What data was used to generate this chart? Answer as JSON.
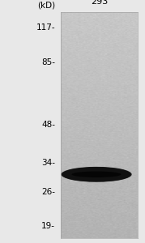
{
  "lane_label": "293",
  "lane_label_fontsize": 8,
  "kd_label": "(kD)",
  "kd_label_fontsize": 7.5,
  "marker_values": [
    117,
    85,
    48,
    34,
    26,
    19
  ],
  "marker_labels": [
    "117-",
    "85-",
    "48-",
    "34-",
    "26-",
    "19-"
  ],
  "marker_fontsize": 7.5,
  "band_kd": 30.5,
  "band_color": "#111111",
  "lane_bg_color": "#b8b8b8",
  "outer_bg_color": "#e8e8e8",
  "fig_width": 1.79,
  "fig_height": 3.0,
  "log_min": 17,
  "log_max": 135
}
